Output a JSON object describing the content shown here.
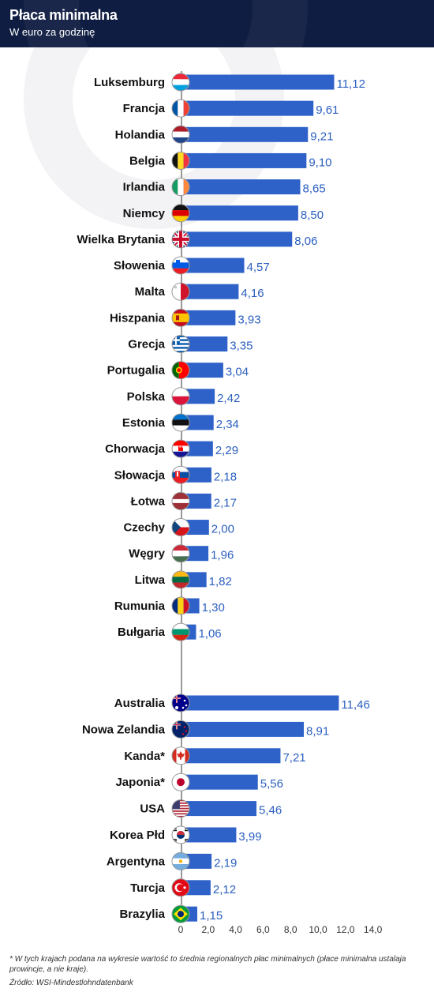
{
  "header": {
    "title": "Płaca minimalna",
    "subtitle": "W euro za godzinę"
  },
  "footnote": "* W tych krajach podana na wykresie wartość to średnia regionalnych płac minimalnych (płace minimalna ustalaja prowincje, a nie kraje).",
  "source": "Źródło: WSI-Mindestlohndatenbank",
  "colors": {
    "bar": "#2f62c9",
    "value_text": "#2b5fbf",
    "label_text": "#111111",
    "header_bg": "#0f1d42"
  },
  "chart_data": {
    "type": "bar",
    "orientation": "horizontal",
    "title": "Płaca minimalna",
    "subtitle": "W euro za godzinę",
    "xlim": [
      0,
      14
    ],
    "x_ticks": [
      "0",
      "2,0",
      "4,0",
      "6,0",
      "8,0",
      "10,0",
      "12,0",
      "14,0"
    ],
    "groups": [
      {
        "categories": [
          "Luksemburg",
          "Francja",
          "Holandia",
          "Belgia",
          "Irlandia",
          "Niemcy",
          "Wielka Brytania",
          "Słowenia",
          "Malta",
          "Hiszpania",
          "Grecja",
          "Portugalia",
          "Polska",
          "Estonia",
          "Chorwacja",
          "Słowacja",
          "Łotwa",
          "Czechy",
          "Węgry",
          "Litwa",
          "Rumunia",
          "Bułgaria"
        ],
        "values": [
          11.12,
          9.61,
          9.21,
          9.1,
          8.65,
          8.5,
          8.06,
          4.57,
          4.16,
          3.93,
          3.35,
          3.04,
          2.42,
          2.34,
          2.29,
          2.18,
          2.17,
          2.0,
          1.96,
          1.82,
          1.3,
          1.06
        ],
        "value_labels": [
          "11,12",
          "9,61",
          "9,21",
          "9,10",
          "8,65",
          "8,50",
          "8,06",
          "4,57",
          "4,16",
          "3,93",
          "3,35",
          "3,04",
          "2,42",
          "2,34",
          "2,29",
          "2,18",
          "2,17",
          "2,00",
          "1,96",
          "1,82",
          "1,30",
          "1,06"
        ],
        "flags": [
          "luxembourg-flag-icon",
          "france-flag-icon",
          "netherlands-flag-icon",
          "belgium-flag-icon",
          "ireland-flag-icon",
          "germany-flag-icon",
          "uk-flag-icon",
          "slovenia-flag-icon",
          "malta-flag-icon",
          "spain-flag-icon",
          "greece-flag-icon",
          "portugal-flag-icon",
          "poland-flag-icon",
          "estonia-flag-icon",
          "croatia-flag-icon",
          "slovakia-flag-icon",
          "latvia-flag-icon",
          "czechia-flag-icon",
          "hungary-flag-icon",
          "lithuania-flag-icon",
          "romania-flag-icon",
          "bulgaria-flag-icon"
        ]
      },
      {
        "categories": [
          "Australia",
          "Nowa Zelandia",
          "Kanda*",
          "Japonia*",
          "USA",
          "Korea Płd",
          "Argentyna",
          "Turcja",
          "Brazylia"
        ],
        "values": [
          11.46,
          8.91,
          7.21,
          5.56,
          5.46,
          3.99,
          2.19,
          2.12,
          1.15
        ],
        "value_labels": [
          "11,46",
          "8,91",
          "7,21",
          "5,56",
          "5,46",
          "3,99",
          "2,19",
          "2,12",
          "1,15"
        ],
        "flags": [
          "australia-flag-icon",
          "new-zealand-flag-icon",
          "canada-flag-icon",
          "japan-flag-icon",
          "usa-flag-icon",
          "south-korea-flag-icon",
          "argentina-flag-icon",
          "turkey-flag-icon",
          "brazil-flag-icon"
        ]
      }
    ]
  }
}
